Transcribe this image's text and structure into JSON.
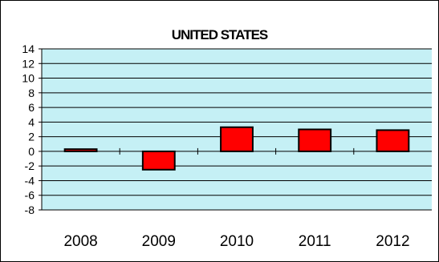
{
  "chart_data": {
    "type": "bar",
    "title": "UNITED STATES",
    "xlabel": "",
    "ylabel": "",
    "categories": [
      "2008",
      "2009",
      "2010",
      "2011",
      "2012"
    ],
    "series": [
      {
        "values": [
          0.3,
          -2.5,
          3.3,
          3.0,
          2.9
        ]
      }
    ],
    "ylim": [
      -8,
      14
    ],
    "yticks": [
      "14",
      "12",
      "10",
      "8",
      "6",
      "4",
      "2",
      "0",
      "-2",
      "-4",
      "-6",
      "-8"
    ],
    "grid": true,
    "legend": "none",
    "colors": {
      "bar_fill": "#ff0000",
      "bar_stroke": "#000000",
      "plot_background": "#c5f0f5",
      "gridline": "#000000"
    }
  }
}
